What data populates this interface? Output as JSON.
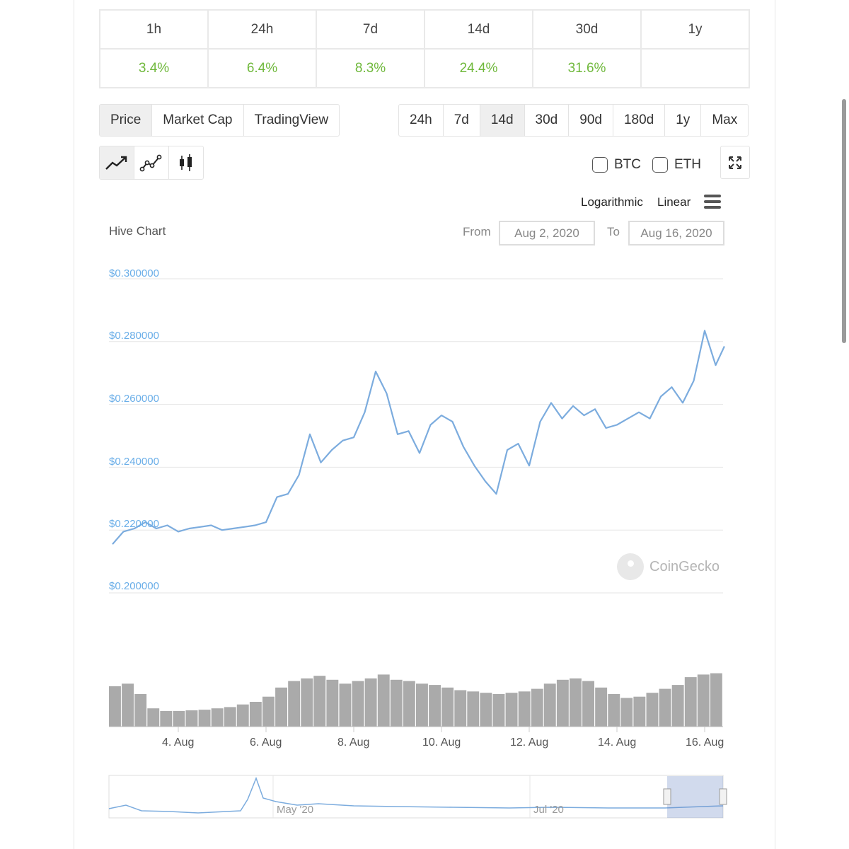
{
  "change_table": {
    "headers": [
      "1h",
      "24h",
      "7d",
      "14d",
      "30d",
      "1y"
    ],
    "values": [
      "3.4%",
      "6.4%",
      "8.3%",
      "24.4%",
      "31.6%",
      ""
    ]
  },
  "chart_tabs": [
    {
      "label": "Price",
      "active": true
    },
    {
      "label": "Market Cap",
      "active": false
    },
    {
      "label": "TradingView",
      "active": false
    }
  ],
  "range_buttons": [
    {
      "label": "24h",
      "active": false
    },
    {
      "label": "7d",
      "active": false
    },
    {
      "label": "14d",
      "active": true
    },
    {
      "label": "30d",
      "active": false
    },
    {
      "label": "90d",
      "active": false
    },
    {
      "label": "180d",
      "active": false
    },
    {
      "label": "1y",
      "active": false
    },
    {
      "label": "Max",
      "active": false
    }
  ],
  "style_buttons": [
    {
      "icon": "line-chart-icon",
      "active": true
    },
    {
      "icon": "ohlc-points-icon",
      "active": false
    },
    {
      "icon": "candlestick-icon",
      "active": false
    }
  ],
  "compare": {
    "btc": "BTC",
    "eth": "ETH"
  },
  "scale": {
    "log": "Logarithmic",
    "linear": "Linear"
  },
  "chart_header": {
    "title": "Hive Chart",
    "from_label": "From",
    "from_value": "Aug 2, 2020",
    "to_label": "To",
    "to_value": "Aug 16, 2020"
  },
  "watermark": "CoinGecko",
  "colors": {
    "line": "#7cacde",
    "positive": "#6fb83b",
    "axis_label": "#6aaee8",
    "volume": "#aaaaaa"
  },
  "chart_data": {
    "type": "line",
    "title": "Hive Chart",
    "x_range": [
      "2020-08-02",
      "2020-08-16"
    ],
    "ylim": [
      0.2,
      0.3
    ],
    "y_ticks": [
      "$0.300000",
      "$0.280000",
      "$0.260000",
      "$0.240000",
      "$0.220000",
      "$0.200000"
    ],
    "x_ticks": [
      "4. Aug",
      "6. Aug",
      "8. Aug",
      "10. Aug",
      "12. Aug",
      "14. Aug",
      "16. Aug"
    ],
    "grid": true,
    "series": [
      {
        "x": [
          2.5,
          2.75,
          3.0,
          3.25,
          3.5,
          3.75,
          4.0,
          4.25,
          4.5,
          4.75,
          5.0,
          5.25,
          5.5,
          5.75,
          6.0,
          6.25,
          6.5,
          6.75,
          7.0,
          7.25,
          7.5,
          7.75,
          8.0,
          8.25,
          8.5,
          8.75,
          9.0,
          9.25,
          9.5,
          9.75,
          10.0,
          10.25,
          10.5,
          10.75,
          11.0,
          11.25,
          11.5,
          11.75,
          12.0,
          12.25,
          12.5,
          12.75,
          13.0,
          13.25,
          13.5,
          13.75,
          14.0,
          14.25,
          14.5,
          14.75,
          15.0,
          15.25,
          15.5,
          15.75,
          16.0,
          16.25,
          16.45
        ],
        "y": [
          0.2155,
          0.2195,
          0.2205,
          0.2225,
          0.2205,
          0.2215,
          0.2195,
          0.2205,
          0.221,
          0.2215,
          0.22,
          0.2205,
          0.221,
          0.2215,
          0.2225,
          0.2305,
          0.2315,
          0.2375,
          0.2505,
          0.2415,
          0.2455,
          0.2485,
          0.2495,
          0.2575,
          0.2705,
          0.2635,
          0.2505,
          0.2515,
          0.2445,
          0.2535,
          0.2565,
          0.2545,
          0.2465,
          0.2405,
          0.2355,
          0.2315,
          0.2455,
          0.2475,
          0.2405,
          0.2545,
          0.2605,
          0.2555,
          0.2595,
          0.2565,
          0.2585,
          0.2525,
          0.2535,
          0.2555,
          0.2575,
          0.2555,
          0.2625,
          0.2655,
          0.2605,
          0.2675,
          0.2835,
          0.2725,
          0.2785
        ]
      }
    ],
    "volume": [
      62,
      66,
      50,
      28,
      24,
      24,
      25,
      26,
      28,
      30,
      34,
      38,
      46,
      60,
      70,
      74,
      78,
      72,
      66,
      70,
      74,
      80,
      72,
      70,
      66,
      64,
      60,
      56,
      54,
      52,
      50,
      52,
      54,
      58,
      66,
      72,
      74,
      70,
      60,
      50,
      44,
      46,
      52,
      58,
      64,
      76,
      80,
      82
    ],
    "navigator_labels": [
      "May '20",
      "Jul '20"
    ]
  }
}
